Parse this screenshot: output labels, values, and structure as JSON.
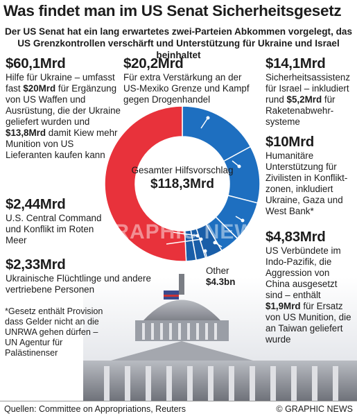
{
  "chart_data": {
    "type": "pie",
    "title": "Was findet man im US Senat Sicherheitsgesetz",
    "subtitle": [
      "Der US Senat hat ein lang erwartetes zwei-Parteien Abkommen vorgelegt, das",
      "US Grenzkontrollen verschärft und Unterstützung für Ukraine und Israel beinhaltet"
    ],
    "center_label": "Gesamter Hilfsvorschlag",
    "total": 118.3,
    "total_label": "$118,3Mrd",
    "categories": [
      null,
      null,
      null,
      null,
      "Other",
      null,
      null,
      null
    ],
    "values": [
      20.2,
      14.1,
      10,
      4.83,
      4.3,
      2.33,
      2.44,
      60.1
    ],
    "value_labels": [
      "$20,2Mrd",
      "$14,1Mrd",
      "$10Mrd",
      "$4,83Mrd",
      "$4.3bn",
      "$2,33Mrd",
      "$2,44Mrd",
      "$60,1Mrd"
    ],
    "colors": [
      "#1e6fc0",
      "#1e6fc0",
      "#1e6fc0",
      "#1e6fc0",
      "#1a5ea8",
      "#1a5ea8",
      "#1a5ea8",
      "#e8323b"
    ],
    "descriptions": [
      [
        {
          "text": "Für extra Verstärkung an der US-Mexiko Grenze und Kampf gegen Drogenhandel"
        }
      ],
      [
        {
          "text": "Sicherheitsassistenz für Israel – inkludiert rund "
        },
        {
          "text": "$5,2Mrd",
          "bold": true
        },
        {
          "text": " für Raketenabwehr-systeme"
        }
      ],
      [
        {
          "text": "Humanitäre Unterstützung für Zivilisten in Konflikt-zonen, inkludiert Ukraine, Gaza und West Bank*"
        }
      ],
      [
        {
          "text": "US Verbündete im Indo-Pazifik, die Aggression von China ausgesetzt sind – enthält "
        },
        {
          "text": "$1,9Mrd",
          "bold": true
        },
        {
          "text": " für Ersatz von US Munition, die an Taiwan geliefert wurde"
        }
      ],
      null,
      [
        {
          "text": "Ukrainische Flüchtlinge und andere vertriebene Personen"
        }
      ],
      [
        {
          "text": "U.S. Central Command und Konflikt im Roten Meer"
        }
      ],
      [
        {
          "text": "Hilfe für Ukraine – umfasst fast "
        },
        {
          "text": "$20Mrd",
          "bold": true
        },
        {
          "text": " für Ergänzung von US Waffen und Ausrüstung, die der Ukraine geliefert wurden und "
        },
        {
          "text": "$13,8Mrd",
          "bold": true
        },
        {
          "text": " damit Kiew mehr Munition von US Lieferanten kaufen kann"
        }
      ]
    ],
    "watermark": "GRAPHIC NEWS",
    "footnote": "*Gesetz enthält Provision dass Gelder nicht an die UNRWA gehen dürfen – UN Agentur für Palästinenser",
    "source": "Quellen: Committee on Appropriations, Reuters",
    "credit": "© GRAPHIC NEWS"
  }
}
